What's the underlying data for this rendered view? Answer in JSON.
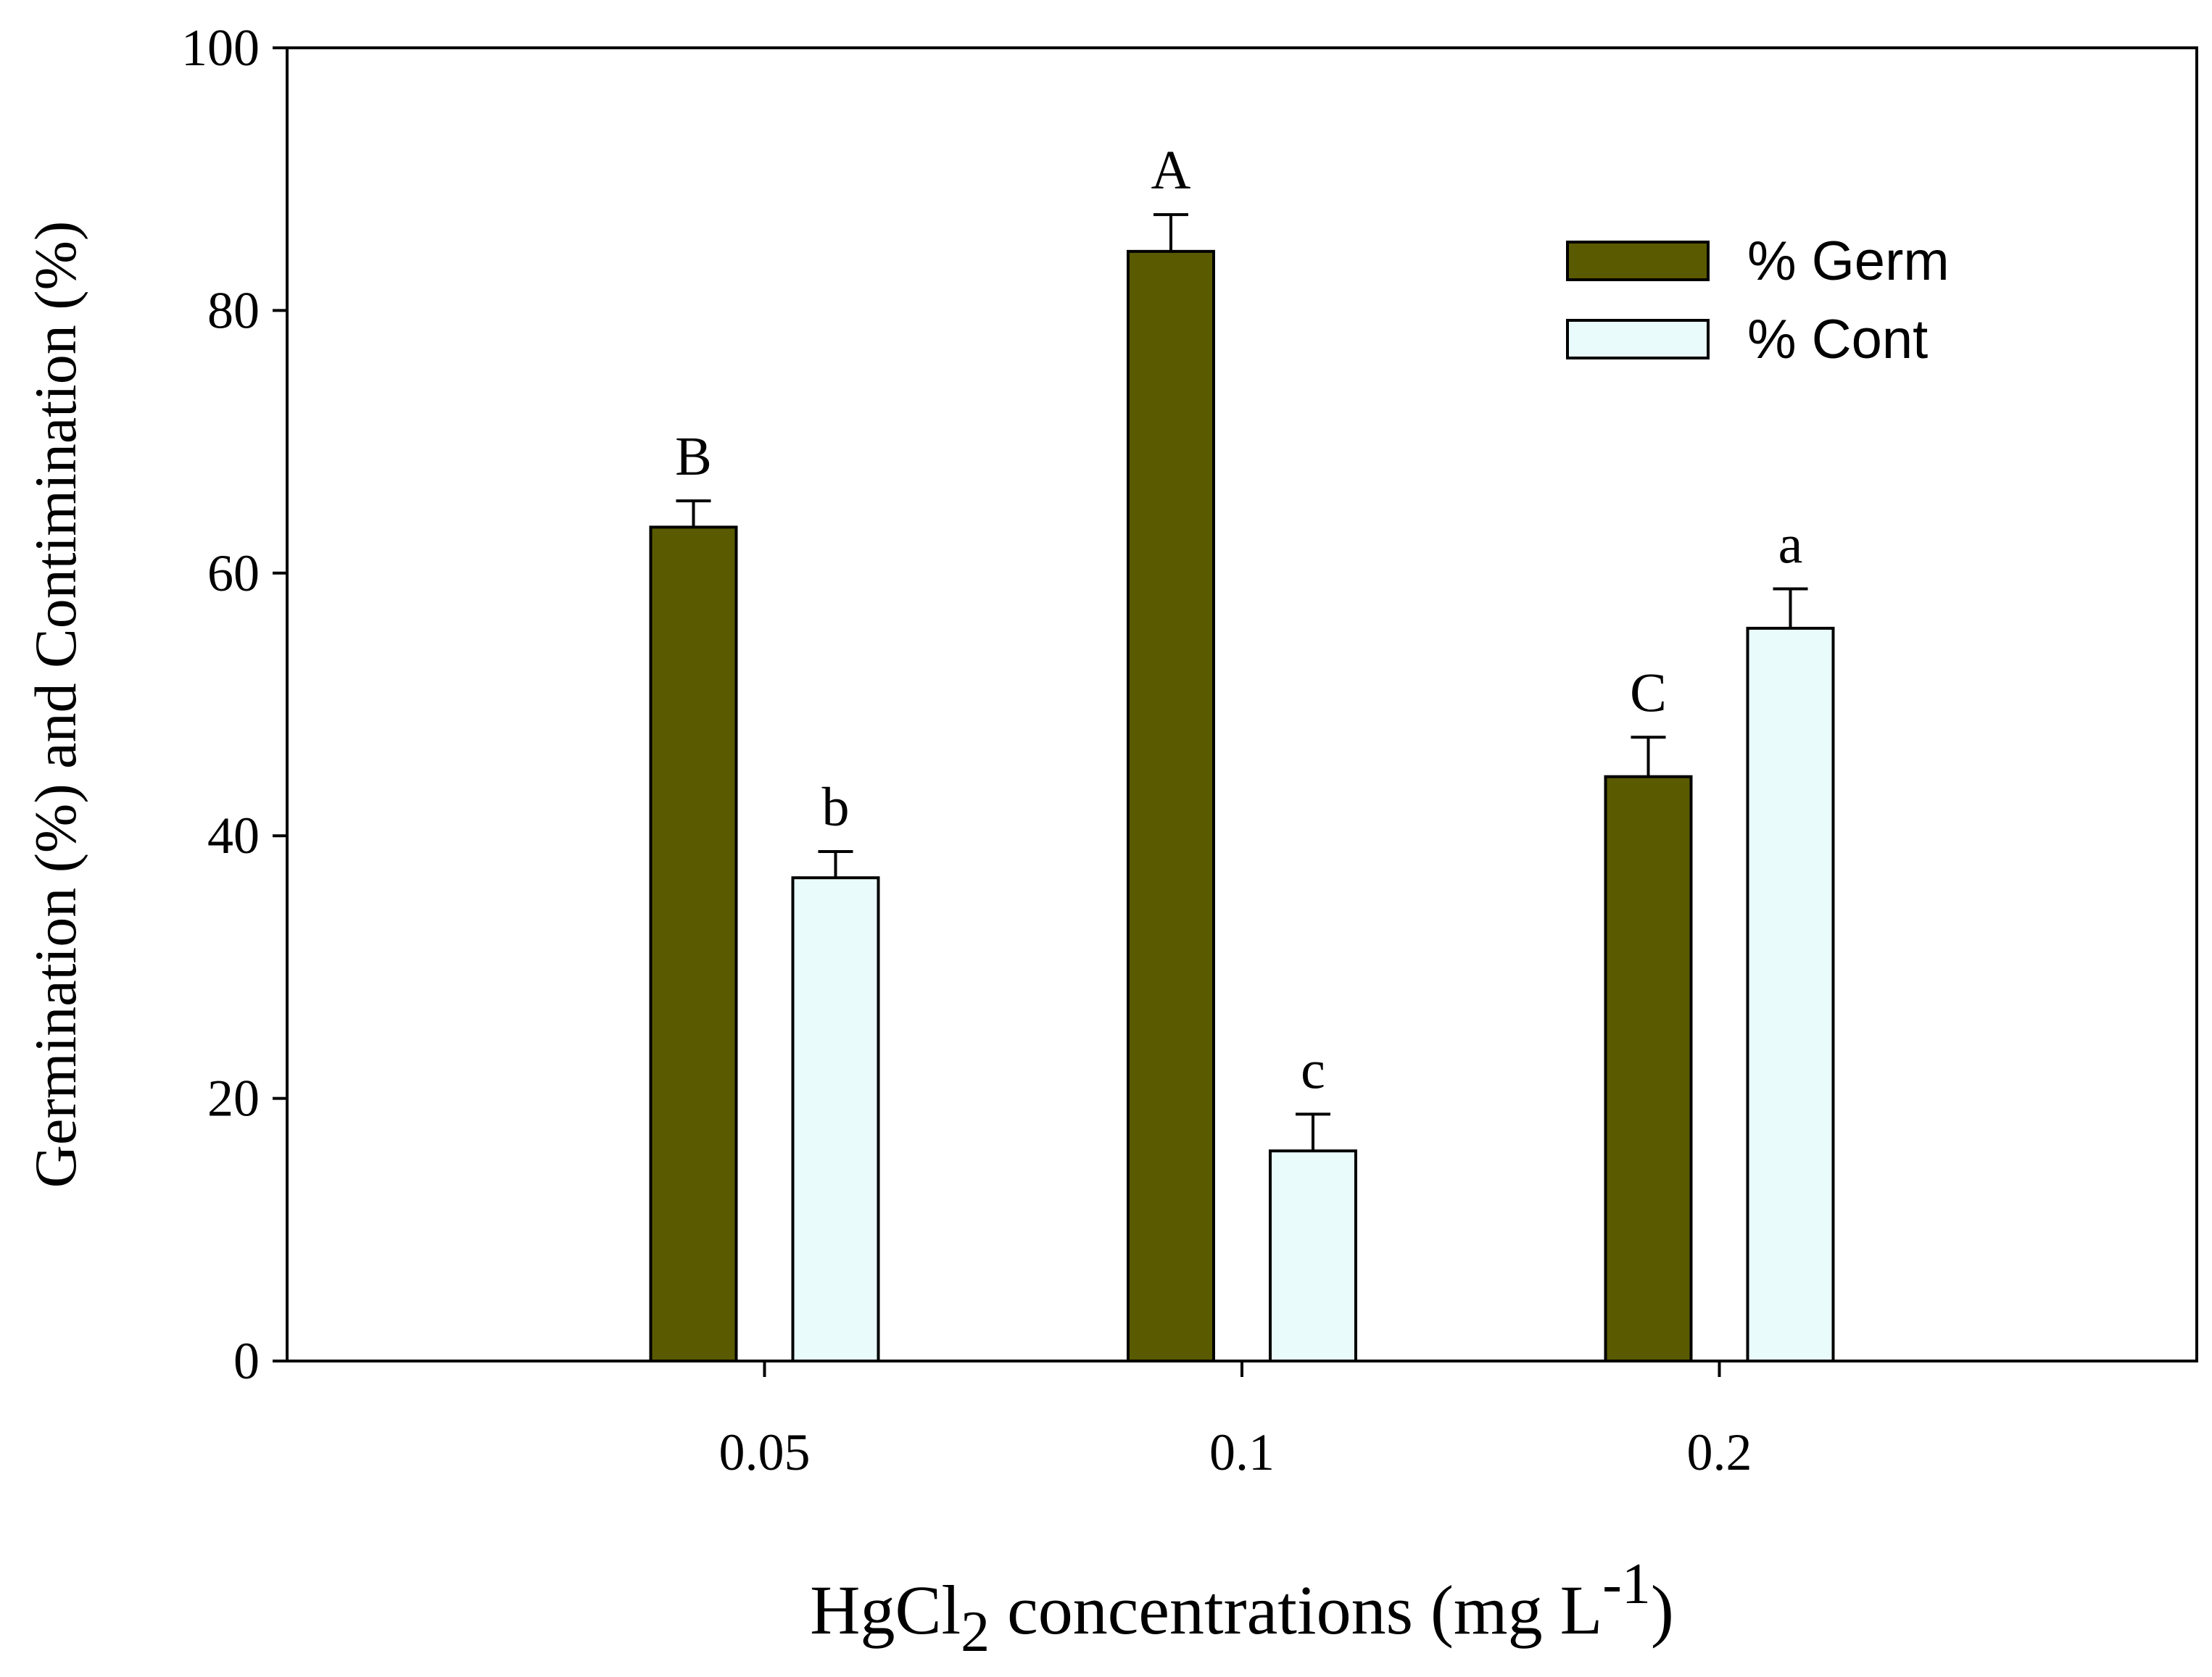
{
  "chart_data": {
    "type": "bar",
    "categories": [
      "0.05",
      "0.1",
      "0.2"
    ],
    "series": [
      {
        "name": "% Germ",
        "values": [
          63.5,
          84.5,
          44.5
        ],
        "errors": [
          2.0,
          2.8,
          3.0
        ],
        "letters": [
          "B",
          "A",
          "C"
        ],
        "color": "#5a5a00"
      },
      {
        "name": "% Cont",
        "values": [
          36.8,
          16.0,
          55.8
        ],
        "errors": [
          2.0,
          2.8,
          3.0
        ],
        "letters": [
          "b",
          "c",
          "a"
        ],
        "color": "#e9fbfb"
      }
    ],
    "ylabel": "Germination (%) and Contimination (%)",
    "xlabel": {
      "prefix": "HgCl",
      "subscript": "2",
      "middle": " concentrations (mg L",
      "superscript": "-1",
      "suffix": ")"
    },
    "ylim": [
      0,
      100
    ],
    "yticks": [
      "0",
      "20",
      "40",
      "60",
      "80",
      "100"
    ],
    "grid": false,
    "legend_position": "top-right"
  }
}
